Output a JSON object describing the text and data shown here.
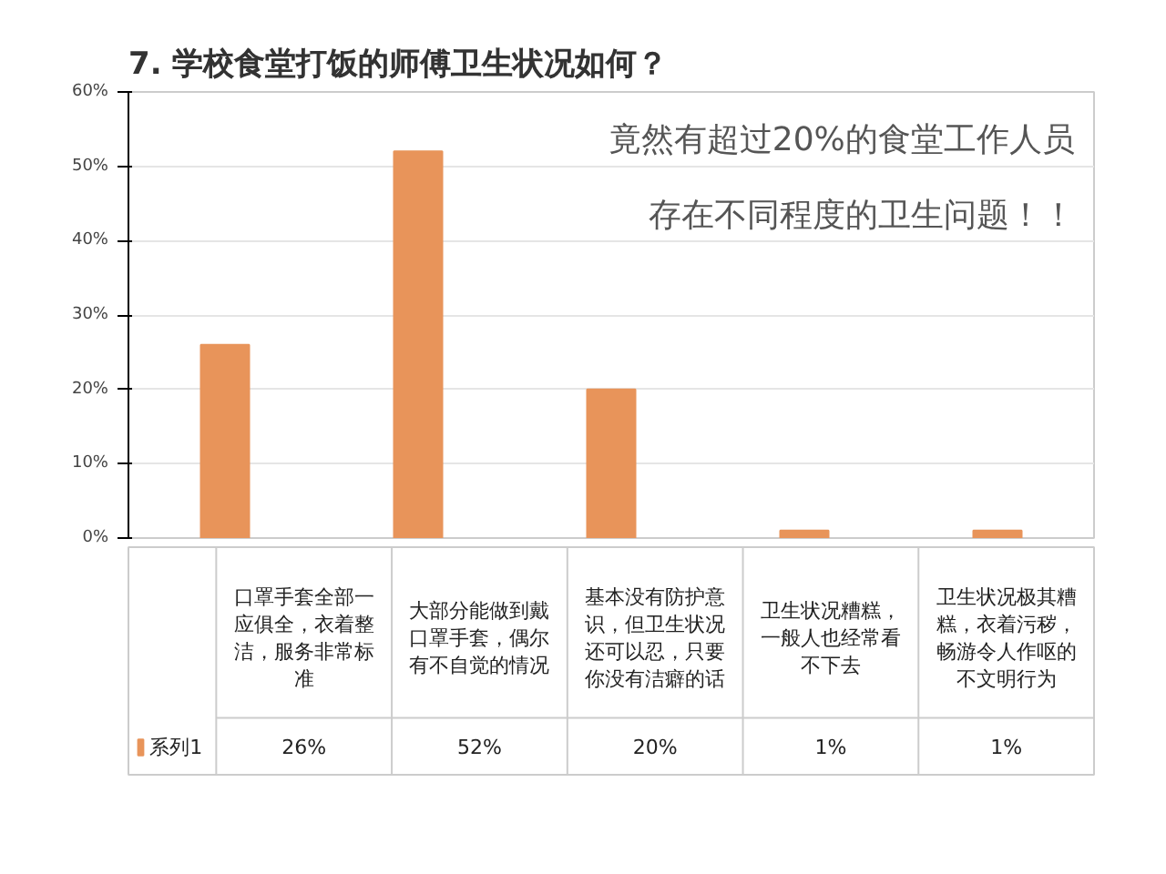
{
  "chart_data": {
    "type": "bar",
    "title": "7. 学校食堂打饭的师傅卫生状况如何？",
    "categories": [
      "口罩手套全部一应俱全，衣着整洁，服务非常标准",
      "大部分能做到戴口罩手套，偶尔有不自觉的情况",
      "基本没有防护意识，但卫生状况还可以忍，只要你没有洁癖的话",
      "卫生状况糟糕，一般人也经常看不下去",
      "卫生状况极其糟糕，衣着污秽，畅游令人作呕的不文明行为"
    ],
    "series": [
      {
        "name": "系列1",
        "color": "#e8945a",
        "values": [
          26,
          52,
          20,
          1,
          1
        ],
        "value_labels": [
          "26%",
          "52%",
          "20%",
          "1%",
          "1%"
        ]
      }
    ],
    "ylim": [
      0,
      60
    ],
    "yticks": [
      {
        "value": 0,
        "label": "0%"
      },
      {
        "value": 10,
        "label": "10%"
      },
      {
        "value": 20,
        "label": "20%"
      },
      {
        "value": 30,
        "label": "30%"
      },
      {
        "value": 40,
        "label": "40%"
      },
      {
        "value": 50,
        "label": "50%"
      },
      {
        "value": 60,
        "label": "60%"
      }
    ],
    "grid": "y",
    "legend": "bottom left",
    "annotations": [
      "竟然有超过20%的食堂工作人员",
      "存在不同程度的卫生问题！！"
    ]
  }
}
